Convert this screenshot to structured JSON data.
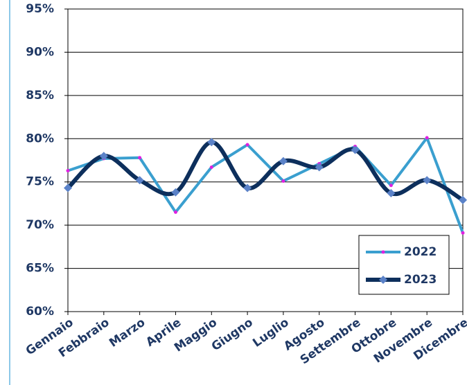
{
  "chart_data": {
    "type": "line",
    "categories": [
      "Gennaio",
      "Febbraio",
      "Marzo",
      "Aprile",
      "Maggio",
      "Giugno",
      "Luglio",
      "Agosto",
      "Settembre",
      "Ottobre",
      "Novembre",
      "Dicembre"
    ],
    "series": [
      {
        "name": "2022",
        "color": "#3a9fcf",
        "marker_color": "#e020e0",
        "smooth": false,
        "values": [
          76.3,
          77.7,
          77.8,
          71.5,
          76.7,
          79.3,
          75.1,
          77.1,
          79.1,
          74.6,
          80.1,
          69.1
        ]
      },
      {
        "name": "2023",
        "color": "#0d2f5c",
        "marker_color": "#5b82c8",
        "smooth": true,
        "values": [
          74.3,
          78.0,
          75.2,
          73.8,
          79.6,
          74.3,
          77.4,
          76.7,
          78.7,
          73.7,
          75.2,
          72.9
        ]
      }
    ],
    "ylim": [
      60,
      95
    ],
    "yticks": [
      {
        "value": 60,
        "label": "60%"
      },
      {
        "value": 65,
        "label": "65%"
      },
      {
        "value": 70,
        "label": "70%"
      },
      {
        "value": 75,
        "label": "75%"
      },
      {
        "value": 80,
        "label": "80%"
      },
      {
        "value": 85,
        "label": "85%"
      },
      {
        "value": 90,
        "label": "90%"
      },
      {
        "value": 95,
        "label": "95%"
      }
    ],
    "grid": true,
    "legend": "lower-right"
  }
}
